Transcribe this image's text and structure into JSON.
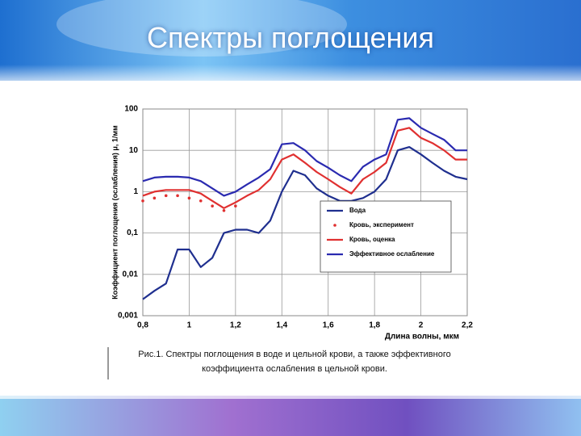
{
  "slide": {
    "title": "Спектры поглощения"
  },
  "chart_data": {
    "type": "line",
    "log_y": true,
    "grid": true,
    "legend_position": "center right",
    "x_label": "Длина волны, мкм",
    "y_label": "Коэффициент поглощения (ослабления) μ, 1/мм",
    "caption": "Рис.1. Спектры поглощения в воде и цельной крови, а также эффективного коэффициента ослабления в цельной крови.",
    "xlim": [
      0.8,
      2.2
    ],
    "xticks": [
      {
        "value": 0.8,
        "label": "0,8"
      },
      1,
      {
        "value": 1.2,
        "label": "1,2"
      },
      {
        "value": 1.4,
        "label": "1,4"
      },
      {
        "value": 1.6,
        "label": "1,6"
      },
      {
        "value": 1.8,
        "label": "1,8"
      },
      2,
      {
        "value": 2.2,
        "label": "2,2"
      }
    ],
    "ylim": [
      0.001,
      100
    ],
    "yticks": [
      {
        "value": 0.001,
        "label": "0,001"
      },
      {
        "value": 0.01,
        "label": "0,01"
      },
      {
        "value": 0.1,
        "label": "0,1"
      },
      1,
      10,
      100
    ],
    "x": [
      0.8,
      0.85,
      0.9,
      0.95,
      1.0,
      1.05,
      1.1,
      1.15,
      1.2,
      1.25,
      1.3,
      1.35,
      1.4,
      1.45,
      1.5,
      1.55,
      1.6,
      1.65,
      1.7,
      1.75,
      1.8,
      1.85,
      1.9,
      1.95,
      2.0,
      2.05,
      2.1,
      2.15,
      2.2
    ],
    "series": [
      {
        "name": "Вода",
        "color": "#1f2f8f",
        "style": "line",
        "values": [
          0.0025,
          0.004,
          0.006,
          0.04,
          0.04,
          0.015,
          0.025,
          0.1,
          0.12,
          0.12,
          0.1,
          0.2,
          1,
          3.2,
          2.5,
          1.2,
          0.8,
          0.6,
          0.6,
          0.7,
          1.0,
          2,
          10,
          12,
          8,
          5,
          3.2,
          2.3,
          2
        ]
      },
      {
        "name": "Кровь, эксперимент",
        "color": "#e03030",
        "style": "markers",
        "values": [
          0.6,
          0.7,
          0.8,
          0.8,
          0.7,
          0.6,
          0.45,
          0.35,
          0.45,
          null,
          null,
          null,
          null,
          null,
          null,
          null,
          null,
          null,
          null,
          null,
          null,
          null,
          null,
          null,
          null,
          null,
          null,
          null,
          null
        ]
      },
      {
        "name": "Кровь, оценка",
        "color": "#e03030",
        "style": "line",
        "values": [
          0.8,
          1,
          1.1,
          1.1,
          1.1,
          0.9,
          0.6,
          0.4,
          0.55,
          0.8,
          1.1,
          2,
          6,
          8,
          5,
          3,
          2,
          1.3,
          0.9,
          2,
          3,
          5,
          30,
          35,
          20,
          15,
          10,
          6,
          6
        ]
      },
      {
        "name": "Эффективное ослабление",
        "color": "#2a2ab0",
        "style": "line",
        "values": [
          1.8,
          2.2,
          2.3,
          2.3,
          2.2,
          1.8,
          1.2,
          0.8,
          1.0,
          1.5,
          2.2,
          3.5,
          14,
          15,
          10,
          5.5,
          3.8,
          2.5,
          1.8,
          4,
          6,
          8,
          55,
          60,
          35,
          25,
          18,
          10,
          10
        ]
      }
    ]
  }
}
